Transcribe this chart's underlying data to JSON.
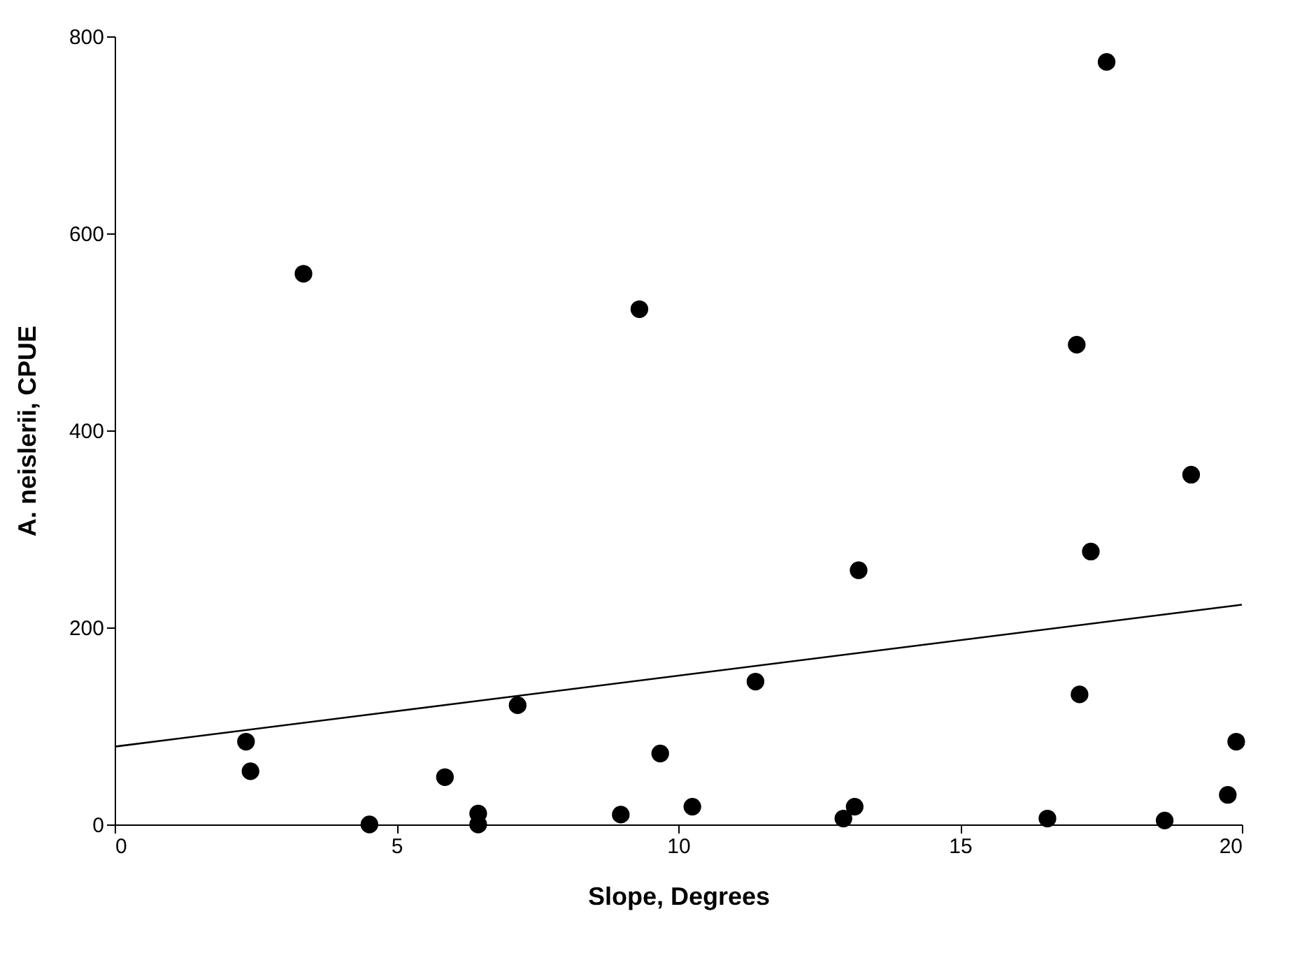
{
  "chart_data": {
    "type": "scatter",
    "xlabel": "Slope, Degrees",
    "ylabel": "A. neislerii, CPUE",
    "xlim": [
      0,
      20
    ],
    "ylim": [
      0,
      800
    ],
    "xticks": [
      0,
      5,
      10,
      15,
      20
    ],
    "yticks": [
      0,
      200,
      400,
      600,
      800
    ],
    "grid": false,
    "series": [
      {
        "type": "scatter",
        "marker": "circle",
        "color": "#000000",
        "x": [
          2.33,
          2.41,
          3.35,
          4.52,
          5.86,
          6.45,
          6.45,
          7.15,
          8.98,
          9.31,
          9.68,
          10.25,
          11.37,
          12.93,
          13.13,
          13.2,
          16.55,
          17.07,
          17.12,
          17.32,
          17.6,
          18.63,
          19.1,
          19.75,
          19.9
        ],
        "values": [
          84,
          54,
          559,
          0,
          48,
          11,
          0,
          121,
          10,
          523,
          72,
          18,
          145,
          6,
          18,
          258,
          6,
          487,
          132,
          277,
          774,
          4,
          355,
          30,
          84
        ]
      },
      {
        "type": "line",
        "marker": "none",
        "color": "#000000",
        "x": [
          0,
          20
        ],
        "values": [
          79,
          223
        ]
      }
    ]
  }
}
